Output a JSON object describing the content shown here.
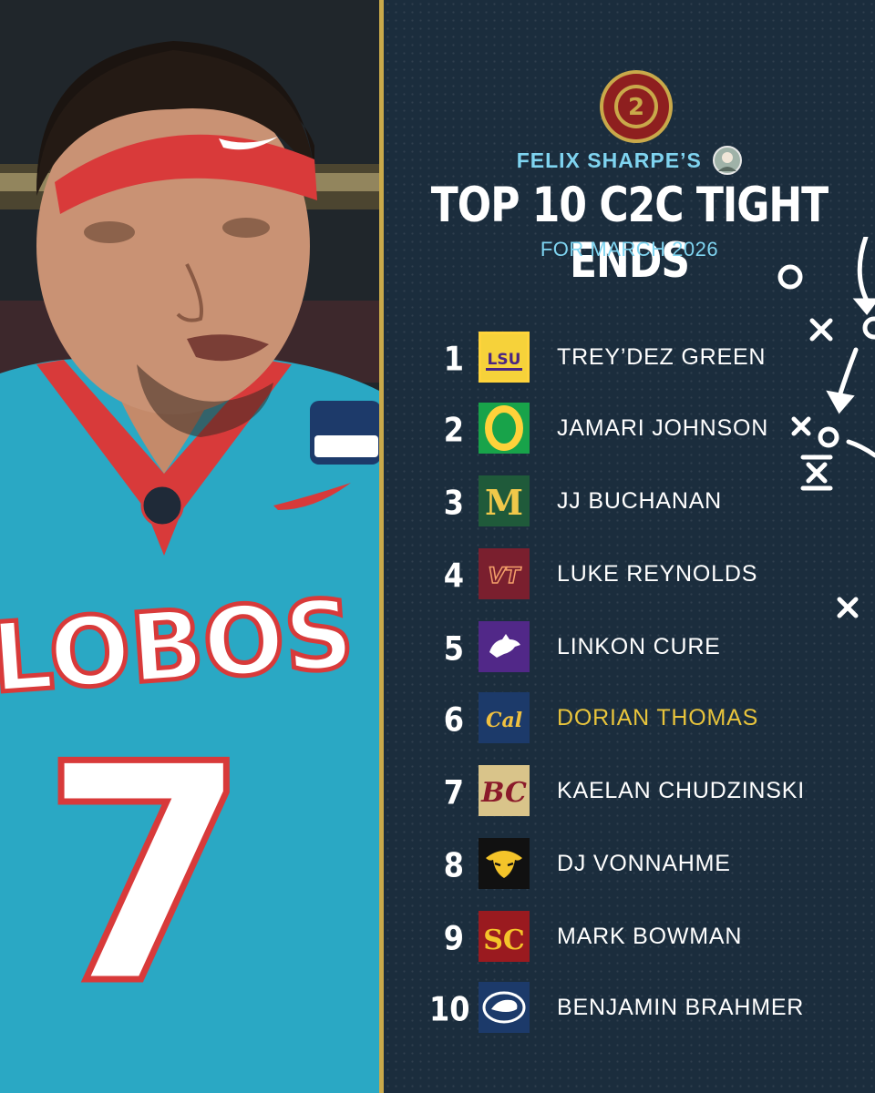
{
  "header": {
    "author": "FELIX SHARPE’S",
    "title": "TOP 10 C2C TIGHT ENDS",
    "date": "FOR MARCH 2026"
  },
  "brand": {
    "logo_icon": "campus2canton-logo",
    "accent": "#c9a94a",
    "highlight": "#e8c43c",
    "subtitle_color": "#7fd4f0",
    "background": "#1b2d3d"
  },
  "photo": {
    "jersey_text": "LOBOS",
    "jersey_number": "7",
    "icon": "football-player-photo"
  },
  "rankings": [
    {
      "rank": "1",
      "name": "TREY’DEZ GREEN",
      "team_icon": "lsu-logo",
      "logo_text": "LSU",
      "highlight": false
    },
    {
      "rank": "2",
      "name": "JAMARI JOHNSON",
      "team_icon": "oregon-logo",
      "logo_text": "O",
      "highlight": false
    },
    {
      "rank": "3",
      "name": "JJ BUCHANAN",
      "team_icon": "michigan-logo",
      "logo_text": "M",
      "highlight": false
    },
    {
      "rank": "4",
      "name": "LUKE REYNOLDS",
      "team_icon": "virginia-tech-logo",
      "logo_text": "VT",
      "highlight": false
    },
    {
      "rank": "5",
      "name": "LINKON CURE",
      "team_icon": "kansas-state-logo",
      "logo_text": "",
      "highlight": false
    },
    {
      "rank": "6",
      "name": "DORIAN THOMAS",
      "team_icon": "cal-logo",
      "logo_text": "Cal",
      "highlight": true
    },
    {
      "rank": "7",
      "name": "KAELAN CHUDZINSKI",
      "team_icon": "boston-college-logo",
      "logo_text": "BC",
      "highlight": false
    },
    {
      "rank": "8",
      "name": "DJ VONNAHME",
      "team_icon": "iowa-logo",
      "logo_text": "",
      "highlight": false
    },
    {
      "rank": "9",
      "name": "MARK BOWMAN",
      "team_icon": "usc-logo",
      "logo_text": "SC",
      "highlight": false
    },
    {
      "rank": "10",
      "name": "BENJAMIN BRAHMER",
      "team_icon": "penn-state-logo",
      "logo_text": "",
      "highlight": false
    }
  ]
}
